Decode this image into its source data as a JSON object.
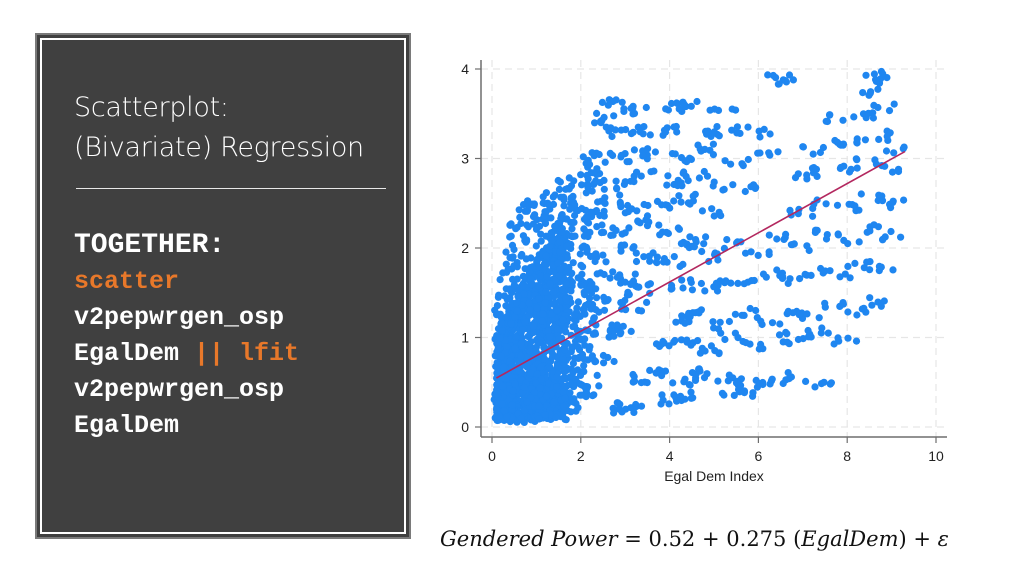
{
  "panel": {
    "title_lines": [
      "Scatterplot:",
      "(Bivariate) Regression"
    ],
    "code": {
      "heading": "TOGETHER:",
      "lines": [
        {
          "parts": [
            {
              "text": "scatter",
              "color": "orange"
            }
          ]
        },
        {
          "parts": [
            {
              "text": "v2pepwrgen_osp",
              "color": "white"
            }
          ]
        },
        {
          "parts": [
            {
              "text": "EgalDem ",
              "color": "white"
            },
            {
              "text": "|| lfit",
              "color": "orange"
            }
          ]
        },
        {
          "parts": [
            {
              "text": "v2pepwrgen_osp",
              "color": "white"
            }
          ]
        },
        {
          "parts": [
            {
              "text": "EgalDem",
              "color": "white"
            }
          ]
        }
      ]
    },
    "colors": {
      "background": "#404040",
      "accent": "#e8782a",
      "text": "#ffffff"
    }
  },
  "equation": {
    "lhs": "Gendered Power",
    "equals": "=",
    "intercept": "0.52",
    "plus1": "+",
    "slope": "0.275",
    "variable": "EgalDem",
    "plus2": "+",
    "error": "ε"
  },
  "chart_data": {
    "type": "scatter",
    "title": "",
    "xlabel": "Egal Dem Index",
    "ylabel": "",
    "xlim": [
      0,
      10
    ],
    "ylim": [
      0,
      4
    ],
    "xticks": [
      0,
      2,
      4,
      6,
      8,
      10
    ],
    "yticks": [
      0,
      1,
      2,
      3,
      4
    ],
    "grid": true,
    "legend": null,
    "colors": {
      "points": "#1f86f0",
      "fit_line": "#b3285f",
      "axis": "#6e6e6e",
      "grid": "#e6e6e6"
    },
    "fit_line": {
      "intercept": 0.52,
      "slope": 0.275,
      "x_start": 0.1,
      "x_end": 9.3
    },
    "series": [
      {
        "name": "v2pepwrgen_osp",
        "points": [
          [
            0.1,
            0.1
          ],
          [
            0.3,
            0.15
          ],
          [
            0.5,
            0.1
          ],
          [
            0.8,
            0.15
          ],
          [
            1.1,
            0.12
          ],
          [
            1.4,
            0.15
          ],
          [
            1.7,
            0.2
          ],
          [
            0.2,
            0.3
          ],
          [
            0.6,
            0.35
          ],
          [
            1.0,
            0.3
          ],
          [
            1.3,
            0.4
          ],
          [
            1.6,
            0.35
          ],
          [
            0.15,
            0.5
          ],
          [
            0.4,
            0.6
          ],
          [
            0.7,
            0.55
          ],
          [
            1.0,
            0.6
          ],
          [
            1.3,
            0.5
          ],
          [
            1.6,
            0.6
          ],
          [
            1.9,
            0.55
          ],
          [
            2.2,
            0.45
          ],
          [
            0.2,
            0.8
          ],
          [
            0.5,
            0.9
          ],
          [
            0.8,
            0.85
          ],
          [
            1.2,
            0.9
          ],
          [
            1.5,
            0.8
          ],
          [
            1.8,
            0.9
          ],
          [
            2.1,
            0.85
          ],
          [
            2.5,
            0.75
          ],
          [
            0.25,
            1.05
          ],
          [
            0.6,
            1.1
          ],
          [
            0.9,
            1.2
          ],
          [
            1.3,
            1.1
          ],
          [
            1.7,
            1.2
          ],
          [
            2.1,
            1.15
          ],
          [
            2.5,
            1.05
          ],
          [
            2.9,
            1.1
          ],
          [
            0.3,
            1.35
          ],
          [
            0.7,
            1.4
          ],
          [
            1.1,
            1.45
          ],
          [
            1.5,
            1.35
          ],
          [
            1.9,
            1.5
          ],
          [
            2.3,
            1.4
          ],
          [
            2.8,
            1.45
          ],
          [
            3.2,
            1.35
          ],
          [
            0.4,
            1.6
          ],
          [
            0.9,
            1.7
          ],
          [
            1.3,
            1.65
          ],
          [
            1.8,
            1.75
          ],
          [
            2.2,
            1.6
          ],
          [
            2.6,
            1.7
          ],
          [
            3.1,
            1.65
          ],
          [
            3.5,
            1.55
          ],
          [
            0.5,
            1.9
          ],
          [
            1.0,
            2.0
          ],
          [
            1.5,
            1.95
          ],
          [
            2.0,
            2.05
          ],
          [
            2.5,
            1.9
          ],
          [
            3.0,
            2.0
          ],
          [
            3.5,
            1.9
          ],
          [
            4.0,
            1.85
          ],
          [
            0.6,
            2.15
          ],
          [
            1.2,
            2.2
          ],
          [
            1.7,
            2.25
          ],
          [
            2.3,
            2.3
          ],
          [
            2.9,
            2.2
          ],
          [
            3.4,
            2.3
          ],
          [
            4.0,
            2.2
          ],
          [
            4.6,
            2.1
          ],
          [
            0.8,
            2.4
          ],
          [
            1.4,
            2.5
          ],
          [
            2.0,
            2.45
          ],
          [
            2.6,
            2.55
          ],
          [
            3.2,
            2.45
          ],
          [
            3.8,
            2.5
          ],
          [
            4.4,
            2.55
          ],
          [
            5.0,
            2.4
          ],
          [
            1.6,
            2.65
          ],
          [
            2.2,
            2.75
          ],
          [
            2.8,
            2.7
          ],
          [
            3.4,
            2.8
          ],
          [
            4.0,
            2.75
          ],
          [
            4.6,
            2.8
          ],
          [
            5.2,
            2.7
          ],
          [
            5.8,
            2.65
          ],
          [
            2.3,
            2.95
          ],
          [
            2.9,
            3.0
          ],
          [
            3.5,
            3.05
          ],
          [
            4.2,
            3.0
          ],
          [
            4.9,
            3.1
          ],
          [
            5.5,
            2.95
          ],
          [
            6.2,
            3.05
          ],
          [
            2.8,
            3.3
          ],
          [
            3.4,
            3.3
          ],
          [
            4.1,
            3.3
          ],
          [
            4.8,
            3.3
          ],
          [
            5.4,
            3.3
          ],
          [
            6.0,
            3.3
          ],
          [
            2.6,
            3.45
          ],
          [
            2.7,
            3.6
          ],
          [
            3.2,
            3.55
          ],
          [
            4.1,
            3.58
          ],
          [
            4.4,
            3.58
          ],
          [
            5.2,
            3.58
          ],
          [
            6.4,
            3.88
          ],
          [
            6.6,
            3.88
          ],
          [
            4.5,
            2.0
          ],
          [
            5.0,
            1.9
          ],
          [
            5.5,
            2.05
          ],
          [
            6.0,
            1.95
          ],
          [
            6.5,
            2.1
          ],
          [
            7.0,
            2.0
          ],
          [
            7.5,
            2.15
          ],
          [
            8.0,
            2.1
          ],
          [
            8.5,
            2.2
          ],
          [
            9.0,
            2.15
          ],
          [
            4.3,
            1.6
          ],
          [
            4.8,
            1.55
          ],
          [
            5.3,
            1.65
          ],
          [
            5.8,
            1.6
          ],
          [
            6.3,
            1.7
          ],
          [
            6.8,
            1.65
          ],
          [
            7.3,
            1.75
          ],
          [
            7.8,
            1.7
          ],
          [
            8.3,
            1.8
          ],
          [
            8.8,
            1.75
          ],
          [
            4.2,
            1.2
          ],
          [
            4.7,
            1.25
          ],
          [
            5.2,
            1.15
          ],
          [
            5.7,
            1.3
          ],
          [
            6.2,
            1.2
          ],
          [
            6.7,
            1.3
          ],
          [
            7.2,
            1.25
          ],
          [
            7.7,
            1.35
          ],
          [
            8.2,
            1.3
          ],
          [
            8.7,
            1.4
          ],
          [
            3.9,
            0.9
          ],
          [
            4.4,
            0.95
          ],
          [
            4.9,
            0.85
          ],
          [
            5.4,
            1.0
          ],
          [
            5.9,
            0.9
          ],
          [
            6.4,
            1.0
          ],
          [
            6.9,
            0.95
          ],
          [
            7.4,
            1.05
          ],
          [
            8.0,
            0.95
          ],
          [
            3.3,
            0.55
          ],
          [
            3.8,
            0.6
          ],
          [
            4.3,
            0.5
          ],
          [
            4.8,
            0.6
          ],
          [
            5.3,
            0.55
          ],
          [
            5.8,
            0.5
          ],
          [
            6.3,
            0.5
          ],
          [
            6.8,
            0.55
          ],
          [
            7.4,
            0.5
          ],
          [
            3.0,
            0.2
          ],
          [
            3.1,
            0.22
          ],
          [
            4.1,
            0.3
          ],
          [
            4.3,
            0.35
          ],
          [
            5.4,
            0.4
          ],
          [
            5.6,
            0.4
          ],
          [
            5.8,
            0.45
          ],
          [
            7.0,
            2.4
          ],
          [
            7.5,
            2.5
          ],
          [
            8.0,
            2.45
          ],
          [
            8.5,
            2.55
          ],
          [
            9.0,
            2.5
          ],
          [
            7.0,
            2.8
          ],
          [
            7.5,
            2.85
          ],
          [
            8.0,
            2.9
          ],
          [
            8.5,
            2.95
          ],
          [
            9.0,
            2.9
          ],
          [
            7.2,
            3.1
          ],
          [
            7.7,
            3.15
          ],
          [
            8.2,
            3.2
          ],
          [
            8.7,
            3.25
          ],
          [
            9.1,
            3.1
          ],
          [
            7.8,
            3.45
          ],
          [
            8.3,
            3.5
          ],
          [
            8.8,
            3.55
          ],
          [
            8.6,
            3.75
          ],
          [
            8.9,
            3.85
          ],
          [
            8.7,
            3.98
          ],
          [
            9.0,
            3.98
          ]
        ]
      }
    ]
  }
}
